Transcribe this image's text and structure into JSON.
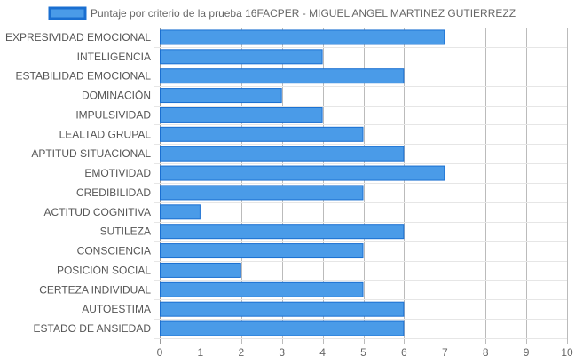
{
  "chart_data": {
    "type": "bar",
    "orientation": "horizontal",
    "title": "",
    "xlabel": "",
    "ylabel": "",
    "xlim": [
      0,
      10
    ],
    "x_ticks": [
      0,
      1,
      2,
      3,
      4,
      5,
      6,
      7,
      8,
      9,
      10
    ],
    "grid": true,
    "legend_position": "top",
    "categories": [
      "EXPRESIVIDAD EMOCIONAL",
      "INTELIGENCIA",
      "ESTABILIDAD EMOCIONAL",
      "DOMINACIÓN",
      "IMPULSIVIDAD",
      "LEALTAD GRUPAL",
      "APTITUD SITUACIONAL",
      "EMOTIVIDAD",
      "CREDIBILIDAD",
      "ACTITUD COGNITIVA",
      "SUTILEZA",
      "CONSCIENCIA",
      "POSICIÓN SOCIAL",
      "CERTEZA INDIVIDUAL",
      "AUTOESTIMA",
      "ESTADO DE ANSIEDAD"
    ],
    "series": [
      {
        "name": "Puntaje por criterio de la prueba 16FACPER - MIGUEL ANGEL MARTINEZ GUTIERREZZ",
        "values": [
          7,
          4,
          6,
          3,
          4,
          5,
          6,
          7,
          5,
          1,
          6,
          5,
          2,
          5,
          6,
          6
        ],
        "color": "#4a9be8",
        "border_color": "#1a6fd1"
      }
    ]
  }
}
